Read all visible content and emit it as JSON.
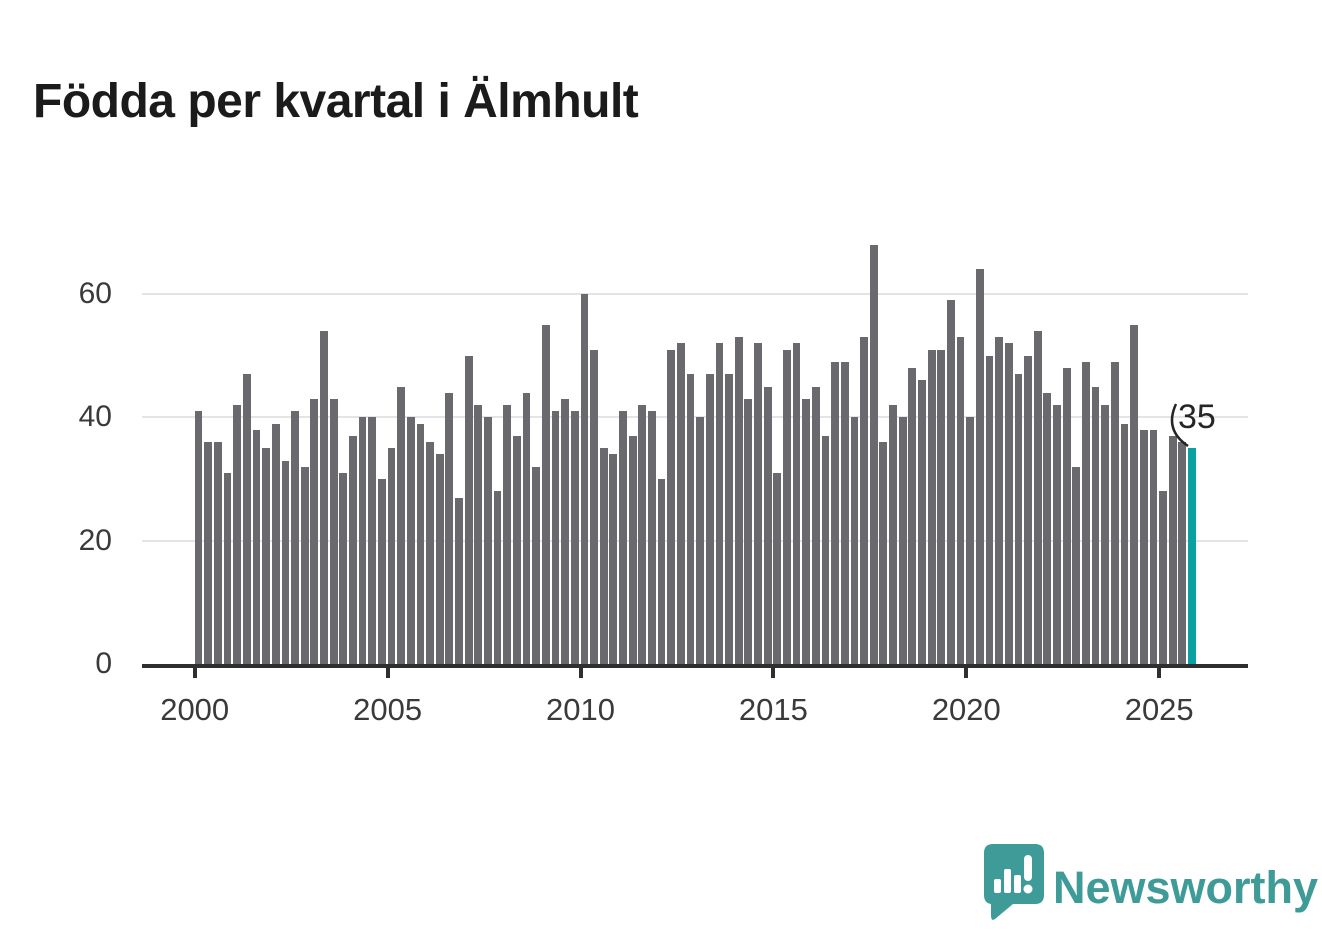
{
  "title": "Födda per kvartal i Älmhult",
  "chart_data": {
    "type": "bar",
    "title": "Födda per kvartal i Älmhult",
    "x_unit": "quarter",
    "x_start": "2000 Q1",
    "x_end": "2025 Q4",
    "xlabel": "",
    "ylabel": "",
    "ylim": [
      0,
      72
    ],
    "grid": "horizontal",
    "ytick_labels": [
      "0",
      "20",
      "40",
      "60"
    ],
    "ytick_values": [
      0,
      20,
      40,
      60
    ],
    "xtick_labels": [
      "2000",
      "2005",
      "2010",
      "2015",
      "2020",
      "2025"
    ],
    "bar_color": "#6a696d",
    "values": [
      41,
      36,
      36,
      31,
      42,
      47,
      38,
      35,
      39,
      33,
      41,
      32,
      43,
      54,
      43,
      31,
      37,
      40,
      40,
      30,
      35,
      45,
      40,
      39,
      36,
      34,
      44,
      27,
      50,
      42,
      40,
      28,
      42,
      37,
      44,
      32,
      55,
      41,
      43,
      41,
      60,
      51,
      35,
      34,
      41,
      37,
      42,
      41,
      30,
      51,
      52,
      47,
      40,
      47,
      52,
      47,
      53,
      43,
      52,
      45,
      31,
      51,
      52,
      43,
      45,
      37,
      49,
      49,
      40,
      53,
      68,
      36,
      42,
      40,
      48,
      46,
      51,
      51,
      59,
      53,
      40,
      64,
      50,
      53,
      52,
      47,
      50,
      54,
      44,
      42,
      48,
      32,
      49,
      45,
      42,
      49,
      39,
      55,
      38,
      38,
      28,
      37,
      36,
      35
    ],
    "years": [
      2000,
      2001,
      2002,
      2003,
      2004,
      2005,
      2006,
      2007,
      2008,
      2009,
      2010,
      2011,
      2012,
      2013,
      2014,
      2015,
      2016,
      2017,
      2018,
      2019,
      2020,
      2021,
      2022,
      2023,
      2024,
      2025
    ],
    "highlight": {
      "index": 103,
      "quarter": "2025 Q4",
      "value": 35,
      "label": "35",
      "color": "#0ba0a1"
    }
  },
  "branding": {
    "name": "Newsworthy",
    "color": "#3e9b97"
  }
}
